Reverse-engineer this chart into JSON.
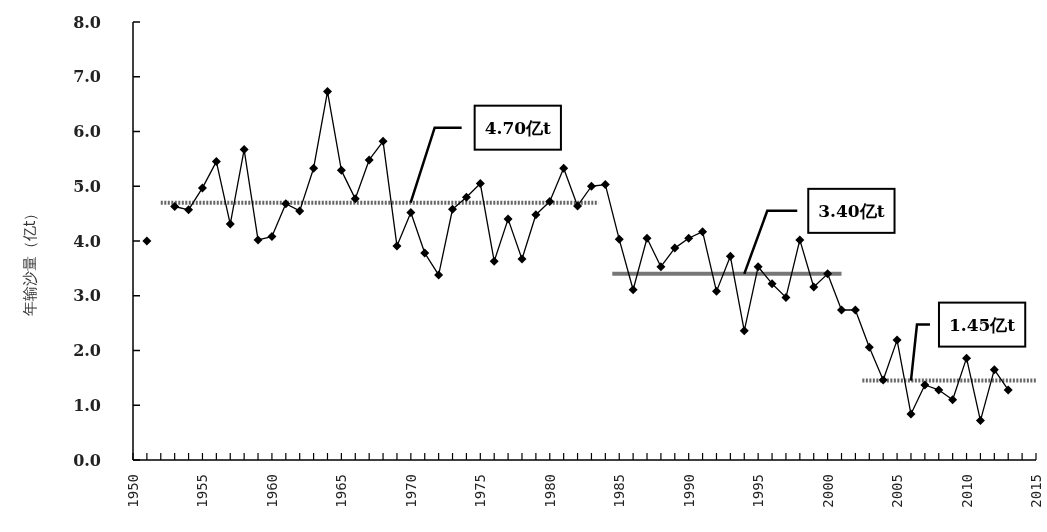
{
  "chart_data": {
    "type": "line",
    "ylabel": "年输沙量（亿t）",
    "xlim": [
      1950,
      2015
    ],
    "ylim": [
      0,
      8
    ],
    "yticks": [
      {
        "value": 0,
        "label": "0.0"
      },
      {
        "value": 1,
        "label": "1.0"
      },
      {
        "value": 2,
        "label": "2.0"
      },
      {
        "value": 3,
        "label": "3.0"
      },
      {
        "value": 4,
        "label": "4.0"
      },
      {
        "value": 5,
        "label": "5.0"
      },
      {
        "value": 6,
        "label": "6.0"
      },
      {
        "value": 7,
        "label": "7.0"
      },
      {
        "value": 8,
        "label": "8.0"
      }
    ],
    "xticks": [
      1950,
      {
        "value": 1951,
        "label": null
      },
      {
        "value": 1952,
        "label": null
      },
      {
        "value": 1953,
        "label": null
      },
      {
        "value": 1954,
        "label": null
      },
      1955,
      {
        "value": 1956,
        "label": null
      },
      {
        "value": 1957,
        "label": null
      },
      {
        "value": 1958,
        "label": null
      },
      {
        "value": 1959,
        "label": null
      },
      1960,
      {
        "value": 1961,
        "label": null
      },
      {
        "value": 1962,
        "label": null
      },
      {
        "value": 1963,
        "label": null
      },
      {
        "value": 1964,
        "label": null
      },
      1965,
      {
        "value": 1966,
        "label": null
      },
      {
        "value": 1967,
        "label": null
      },
      {
        "value": 1968,
        "label": null
      },
      {
        "value": 1969,
        "label": null
      },
      1970,
      {
        "value": 1971,
        "label": null
      },
      {
        "value": 1972,
        "label": null
      },
      {
        "value": 1973,
        "label": null
      },
      {
        "value": 1974,
        "label": null
      },
      1975,
      {
        "value": 1976,
        "label": null
      },
      {
        "value": 1977,
        "label": null
      },
      {
        "value": 1978,
        "label": null
      },
      {
        "value": 1979,
        "label": null
      },
      1980,
      {
        "value": 1981,
        "label": null
      },
      {
        "value": 1982,
        "label": null
      },
      {
        "value": 1983,
        "label": null
      },
      {
        "value": 1984,
        "label": null
      },
      1985,
      {
        "value": 1986,
        "label": null
      },
      {
        "value": 1987,
        "label": null
      },
      {
        "value": 1988,
        "label": null
      },
      {
        "value": 1989,
        "label": null
      },
      1990,
      {
        "value": 1991,
        "label": null
      },
      {
        "value": 1992,
        "label": null
      },
      {
        "value": 1993,
        "label": null
      },
      {
        "value": 1994,
        "label": null
      },
      1995,
      {
        "value": 1996,
        "label": null
      },
      {
        "value": 1997,
        "label": null
      },
      {
        "value": 1998,
        "label": null
      },
      {
        "value": 1999,
        "label": null
      },
      2000,
      {
        "value": 2001,
        "label": null
      },
      {
        "value": 2002,
        "label": null
      },
      {
        "value": 2003,
        "label": null
      },
      {
        "value": 2004,
        "label": null
      },
      2005,
      {
        "value": 2006,
        "label": null
      },
      {
        "value": 2007,
        "label": null
      },
      {
        "value": 2008,
        "label": null
      },
      {
        "value": 2009,
        "label": null
      },
      2010,
      {
        "value": 2011,
        "label": null
      },
      {
        "value": 2012,
        "label": null
      },
      {
        "value": 2013,
        "label": null
      },
      {
        "value": 2014,
        "label": null
      },
      2015
    ],
    "marker": "diamond",
    "line_style": "solid",
    "grid": false,
    "series": [
      {
        "color": "#000000",
        "x": [
          1951,
          1952,
          1953,
          1954,
          1955,
          1956,
          1957,
          1958,
          1959,
          1960,
          1961,
          1962,
          1963,
          1964,
          1965,
          1966,
          1967,
          1968,
          1969,
          1970,
          1971,
          1972,
          1973,
          1974,
          1975,
          1976,
          1977,
          1978,
          1979,
          1980,
          1981,
          1982,
          1983,
          1984,
          1985,
          1986,
          1987,
          1988,
          1989,
          1990,
          1991,
          1992,
          1993,
          1994,
          1995,
          1996,
          1997,
          1998,
          1999,
          2000,
          2001,
          2002,
          2003,
          2004,
          2005,
          2006,
          2007,
          2008,
          2009,
          2010,
          2011,
          2012,
          2013
        ],
        "values": [
          4.0,
          null,
          4.63,
          4.57,
          4.97,
          5.45,
          4.31,
          5.67,
          4.02,
          4.08,
          4.68,
          4.55,
          5.33,
          6.73,
          5.29,
          4.77,
          5.48,
          5.82,
          3.91,
          4.52,
          3.78,
          3.38,
          4.58,
          4.8,
          5.05,
          3.63,
          4.4,
          3.67,
          4.48,
          4.72,
          5.33,
          4.64,
          5.0,
          5.03,
          4.03,
          3.11,
          4.05,
          3.53,
          3.87,
          4.05,
          4.17,
          3.08,
          3.72,
          2.36,
          3.53,
          3.22,
          2.97,
          4.02,
          3.16,
          3.4,
          2.74,
          2.74,
          2.06,
          1.46,
          2.19,
          0.84,
          1.37,
          1.28,
          1.1,
          1.86,
          0.72,
          1.65,
          1.28
        ]
      },
      {
        "color": "#666666",
        "marker": "none",
        "line_style": "dotted",
        "x": [
          1952,
          1983.5
        ],
        "values": [
          4.7,
          4.7
        ]
      },
      {
        "color": "#777777",
        "marker": "none",
        "line_style": "solid",
        "x": [
          1984.5,
          2001
        ],
        "values": [
          3.4,
          3.4
        ]
      },
      {
        "color": "#666666",
        "marker": "none",
        "line_style": "dotted",
        "x": [
          2002.5,
          2015
        ],
        "values": [
          1.45,
          1.45
        ]
      }
    ],
    "annotations": [
      "4.70亿t",
      {
        "text": "3.40亿t",
        "x": 1994,
        "y": 3.4
      },
      {
        "text": "1.45亿t",
        "x": 2006,
        "y": 1.45
      }
    ]
  }
}
